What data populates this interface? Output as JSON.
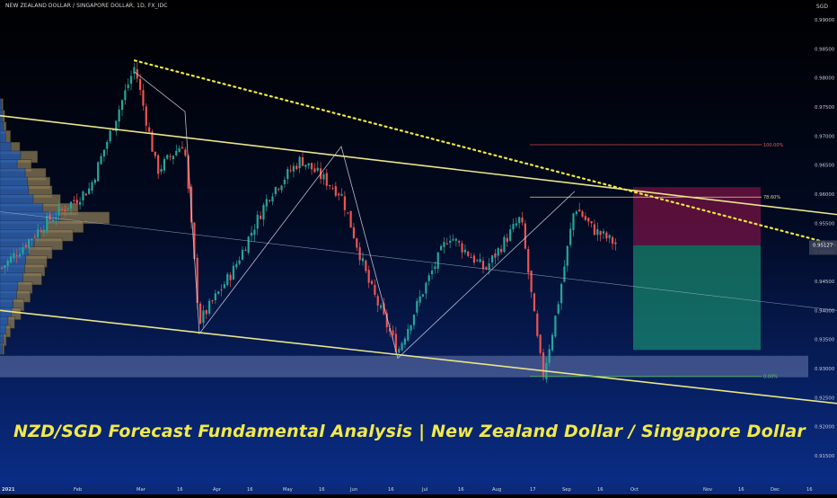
{
  "header": {
    "symbol": "NEW ZEALAND DOLLAR / SINGAPORE DOLLAR, 1D, FX_IDC",
    "currency": "SGD"
  },
  "headline": "NZD/SGD Forecast Fundamental Analysis | New Zealand Dollar / Singapore Dollar",
  "colors": {
    "bg_top": "#000000",
    "bg_bottom": "#0a2e8a",
    "up": "#26a69a",
    "down": "#ef5350",
    "trend": "#e9e58a",
    "dotted": "#f0e640"
  },
  "chart_data": {
    "type": "candlestick",
    "ylim": [
      0.912,
      0.992
    ],
    "y_ticks": [
      "0.99000",
      "0.98500",
      "0.98000",
      "0.97500",
      "0.97000",
      "0.96500",
      "0.96000",
      "0.95500",
      "0.95000",
      "0.94500",
      "0.94000",
      "0.93500",
      "0.93000",
      "0.92500",
      "0.92000",
      "0.91500"
    ],
    "x_ticks": [
      "2021",
      "Feb",
      "Mar",
      "16",
      "Apr",
      "16",
      "May",
      "16",
      "Jun",
      "16",
      "Jul",
      "16",
      "Aug",
      "17",
      "Sep",
      "16",
      "Oct",
      "Nov",
      "16",
      "Dec",
      "16"
    ],
    "price_label": "0.95127",
    "fib_labels": {
      "top": "100.00%",
      "mid": "78.60%",
      "bottom": "0.00%"
    },
    "fib_levels": {
      "top": 0.9685,
      "mid": 0.9595,
      "bottom": 0.9287
    },
    "position": {
      "entry": 0.9512,
      "stop": 0.9612,
      "target": 0.9332
    },
    "support_zone": [
      0.9285,
      0.9322
    ],
    "channel_upper": [
      [
        0,
        0.9735
      ],
      [
        932,
        0.9565
      ]
    ],
    "channel_lower": [
      [
        0,
        0.94
      ],
      [
        932,
        0.924
      ]
    ],
    "channel_mid": [
      [
        0,
        0.957
      ],
      [
        932,
        0.94
      ]
    ],
    "dotted_resistance": [
      [
        150,
        0.983
      ],
      [
        932,
        0.9512
      ]
    ],
    "waves": [
      [
        150,
        0.981
      ],
      [
        206,
        0.9742
      ],
      [
        222,
        0.936
      ],
      [
        380,
        0.9682
      ],
      [
        443,
        0.9318
      ],
      [
        640,
        0.9605
      ]
    ],
    "pivots": [
      [
        0,
        0.947
      ],
      [
        50,
        0.955
      ],
      [
        100,
        0.961
      ],
      [
        150,
        0.982
      ],
      [
        175,
        0.964
      ],
      [
        205,
        0.969
      ],
      [
        222,
        0.938
      ],
      [
        260,
        0.947
      ],
      [
        300,
        0.96
      ],
      [
        335,
        0.966
      ],
      [
        380,
        0.96
      ],
      [
        410,
        0.945
      ],
      [
        443,
        0.933
      ],
      [
        470,
        0.943
      ],
      [
        500,
        0.953
      ],
      [
        540,
        0.947
      ],
      [
        580,
        0.956
      ],
      [
        600,
        0.933
      ],
      [
        605,
        0.929
      ],
      [
        620,
        0.94
      ],
      [
        640,
        0.958
      ],
      [
        660,
        0.954
      ],
      [
        688,
        0.9512
      ]
    ]
  }
}
